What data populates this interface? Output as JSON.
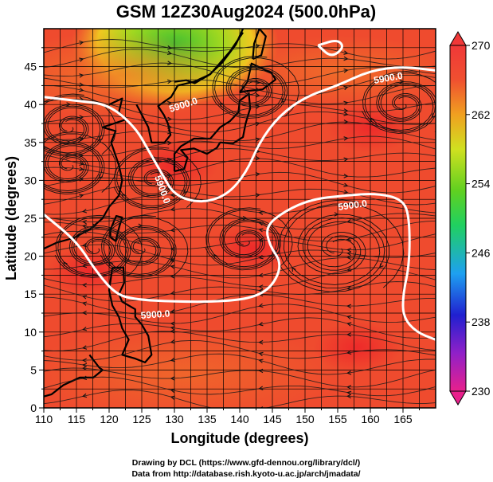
{
  "figure": {
    "title": "GSM 12Z30Aug2024 (500.0hPa)",
    "xlabel": "Longitude (degrees)",
    "ylabel": "Latitude  (degrees)",
    "x_ticks": [
      "110",
      "115",
      "120",
      "125",
      "130",
      "135",
      "140",
      "145",
      "150",
      "155",
      "160",
      "165"
    ],
    "y_ticks": [
      "0",
      "5",
      "10",
      "15",
      "20",
      "25",
      "30",
      "35",
      "40",
      "45"
    ],
    "colorbar": {
      "ticks": [
        "270",
        "262",
        "254",
        "246",
        "238",
        "230"
      ],
      "min": 230,
      "max": 270,
      "colors": [
        "#e8208c",
        "#9020c8",
        "#2020d0",
        "#1ea0f0",
        "#20d060",
        "#60d020",
        "#d0e020",
        "#f0a020",
        "#f05030",
        "#f03838"
      ]
    },
    "contour_labels": [
      "5900.0",
      "5900.0",
      "5900.0",
      "5900.0",
      "5900.0"
    ],
    "credit_line1": "Drawing by DCL (https://www.gfd-dennou.org/library/dcl/)",
    "credit_line2": "Data from http://database.rish.kyoto-u.ac.jp/arch/jmadata/"
  },
  "map_extent": {
    "lon": [
      110,
      170
    ],
    "lat": [
      0,
      50
    ]
  },
  "contour_5900": [
    [
      [
        110,
        41
      ],
      [
        115,
        40.5
      ],
      [
        120,
        40
      ],
      [
        124,
        37
      ],
      [
        126,
        34
      ],
      [
        128,
        31
      ],
      [
        130,
        28
      ],
      [
        134,
        27
      ],
      [
        138,
        28
      ],
      [
        141,
        31
      ],
      [
        143,
        35
      ],
      [
        146,
        38.5
      ],
      [
        150,
        41
      ],
      [
        155,
        42.5
      ],
      [
        160,
        44.5
      ],
      [
        165,
        45
      ],
      [
        170,
        44.5
      ]
    ],
    [
      [
        110,
        25.5
      ],
      [
        115,
        22
      ],
      [
        118,
        18
      ],
      [
        121,
        15
      ],
      [
        124,
        14.3
      ],
      [
        130,
        14
      ],
      [
        137,
        14
      ],
      [
        142,
        14.5
      ],
      [
        145,
        16
      ],
      [
        146.5,
        19
      ],
      [
        144.5,
        21.5
      ],
      [
        144,
        24
      ],
      [
        147,
        26
      ],
      [
        151,
        27.5
      ],
      [
        156,
        28
      ],
      [
        161,
        28.3
      ],
      [
        165,
        27.5
      ],
      [
        166,
        25
      ],
      [
        166,
        19
      ],
      [
        165,
        15
      ],
      [
        165,
        12
      ],
      [
        167,
        10
      ],
      [
        170,
        9
      ]
    ],
    [
      [
        152,
        47.8
      ],
      [
        155,
        48.6
      ],
      [
        156,
        47.5
      ],
      [
        154,
        46.2
      ],
      [
        152,
        47.8
      ]
    ]
  ],
  "vortices_lonlat": [
    [
      155,
      21
    ],
    [
      125,
      21
    ],
    [
      114,
      37
    ],
    [
      114,
      32
    ],
    [
      127,
      30
    ],
    [
      141,
      22
    ],
    [
      165,
      40
    ],
    [
      118,
      21
    ],
    [
      142,
      42
    ]
  ],
  "warm_cores_lonlat": [
    [
      160,
      37
    ],
    [
      142,
      21
    ],
    [
      130,
      32
    ],
    [
      117,
      18
    ],
    [
      158,
      8
    ]
  ]
}
